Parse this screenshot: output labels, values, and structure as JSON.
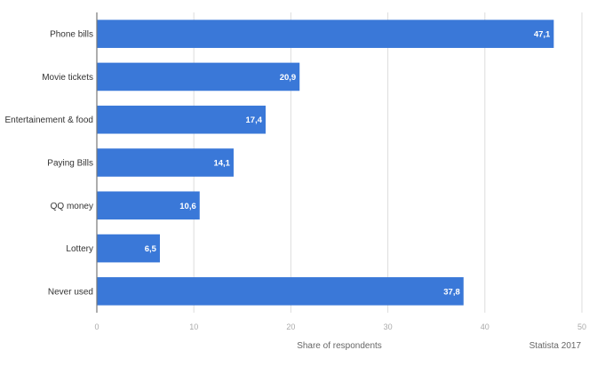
{
  "chart_data": {
    "type": "bar",
    "orientation": "horizontal",
    "categories": [
      "Phone bills",
      "Movie tickets",
      "Entertainement & food",
      "Paying Bills",
      "QQ money",
      "Lottery",
      "Never used"
    ],
    "values": [
      47.1,
      20.9,
      17.4,
      14.1,
      10.6,
      6.5,
      37.8
    ],
    "value_labels": [
      "47,1",
      "20,9",
      "17,4",
      "14,1",
      "10,6",
      "6,5",
      "37,8"
    ],
    "xlim": [
      0,
      50
    ],
    "xticks": [
      0,
      10,
      20,
      30,
      40,
      50
    ],
    "xlabel": "Share of respondents",
    "ylabel": "",
    "title": "",
    "grid": true,
    "bar_color": "#3a78d8"
  },
  "credit": "Statista 2017"
}
